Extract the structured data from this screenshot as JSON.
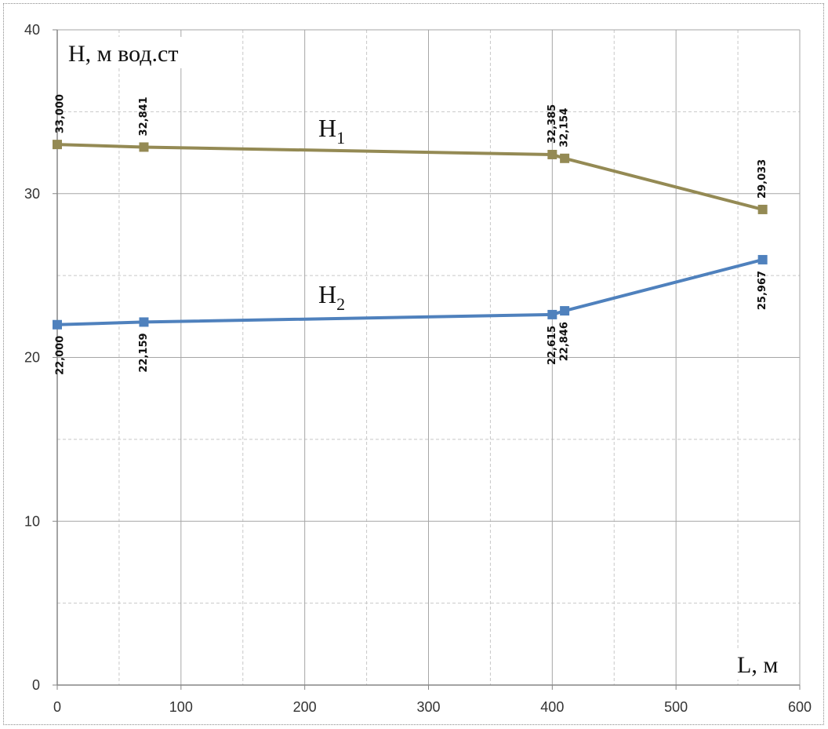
{
  "chart_data": {
    "type": "line",
    "xlabel": "L, м",
    "ylabel": "H, м вод.ст",
    "xlim": [
      0,
      600
    ],
    "ylim": [
      0,
      40
    ],
    "x_ticks": [
      "0",
      "100",
      "200",
      "300",
      "400",
      "500",
      "600"
    ],
    "y_ticks": [
      "0",
      "10",
      "20",
      "30",
      "40"
    ],
    "grid": true,
    "series": [
      {
        "name": "H1",
        "label_main": "H",
        "label_sub": "1",
        "color": "#948a54",
        "x": [
          0,
          70,
          400,
          410,
          570
        ],
        "values": [
          33.0,
          32.841,
          32.385,
          32.154,
          29.033
        ],
        "data_labels": [
          "33,000",
          "32,841",
          "32,385",
          "32,154",
          "29,033"
        ],
        "label_position": "above"
      },
      {
        "name": "H2",
        "label_main": "H",
        "label_sub": "2",
        "color": "#4f81bd",
        "x": [
          0,
          70,
          400,
          410,
          570
        ],
        "values": [
          22.0,
          22.159,
          22.615,
          22.846,
          25.967
        ],
        "data_labels": [
          "22,000",
          "22,159",
          "22,615",
          "22,846",
          "25,967"
        ],
        "label_position": "below"
      }
    ]
  }
}
